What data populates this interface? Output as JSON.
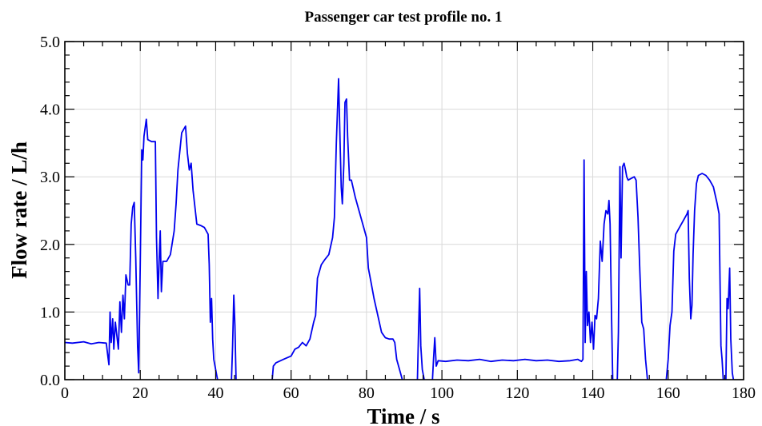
{
  "chart_data": {
    "type": "line",
    "title": "Passenger car test profile no. 1",
    "xlabel": "Time / s",
    "ylabel": "Flow rate / L/h",
    "xlim": [
      0,
      180
    ],
    "ylim": [
      0,
      5
    ],
    "xticks": [
      "0",
      "20",
      "40",
      "60",
      "80",
      "100",
      "120",
      "140",
      "160",
      "180"
    ],
    "yticks": [
      "0.0",
      "1.0",
      "2.0",
      "3.0",
      "4.0",
      "5.0"
    ],
    "grid": true,
    "series": [
      {
        "color": "#0000ee",
        "segments": [
          [
            [
              0,
              0.55
            ],
            [
              2,
              0.54
            ],
            [
              5,
              0.56
            ],
            [
              7,
              0.53
            ],
            [
              9,
              0.55
            ],
            [
              11,
              0.54
            ],
            [
              11.4,
              0.35
            ],
            [
              11.7,
              0.22
            ],
            [
              12,
              1.0
            ],
            [
              12.3,
              0.55
            ],
            [
              12.7,
              0.9
            ],
            [
              13,
              0.45
            ],
            [
              13.4,
              0.85
            ],
            [
              13.8,
              0.65
            ],
            [
              14.2,
              0.45
            ],
            [
              14.6,
              1.15
            ],
            [
              15,
              0.7
            ],
            [
              15.4,
              1.25
            ],
            [
              15.8,
              0.9
            ],
            [
              16.2,
              1.55
            ],
            [
              16.8,
              1.4
            ],
            [
              17.2,
              1.4
            ],
            [
              17.6,
              2.3
            ],
            [
              18,
              2.55
            ],
            [
              18.4,
              2.62
            ],
            [
              18.8,
              1.8
            ],
            [
              19.3,
              0.5
            ],
            [
              19.6,
              0.1
            ],
            [
              20,
              1.7
            ],
            [
              20.4,
              3.4
            ],
            [
              20.7,
              3.25
            ],
            [
              21,
              3.6
            ],
            [
              21.6,
              3.85
            ],
            [
              22,
              3.55
            ],
            [
              23,
              3.52
            ],
            [
              24,
              3.52
            ],
            [
              24.3,
              2.1
            ],
            [
              24.7,
              1.2
            ],
            [
              25,
              1.75
            ],
            [
              25.3,
              2.2
            ],
            [
              25.6,
              1.3
            ],
            [
              26,
              1.75
            ],
            [
              27,
              1.75
            ],
            [
              28,
              1.85
            ],
            [
              29,
              2.2
            ],
            [
              29.5,
              2.6
            ],
            [
              30,
              3.1
            ],
            [
              31,
              3.65
            ],
            [
              32,
              3.75
            ],
            [
              32.5,
              3.35
            ],
            [
              33,
              3.1
            ],
            [
              33.5,
              3.2
            ],
            [
              34,
              2.8
            ],
            [
              35,
              2.3
            ],
            [
              36,
              2.28
            ],
            [
              37,
              2.25
            ],
            [
              38,
              2.15
            ],
            [
              38.3,
              1.7
            ],
            [
              38.6,
              0.85
            ],
            [
              38.9,
              1.2
            ],
            [
              39.2,
              0.6
            ],
            [
              39.5,
              0.3
            ],
            [
              40,
              0.15
            ],
            [
              40.5,
              0.0
            ]
          ],
          [
            [
              44.2,
              0.0
            ],
            [
              44.5,
              0.5
            ],
            [
              44.8,
              1.25
            ],
            [
              45.1,
              0.8
            ],
            [
              45.4,
              0.0
            ]
          ],
          [
            [
              55,
              0.0
            ],
            [
              55.3,
              0.2
            ],
            [
              56,
              0.25
            ],
            [
              58,
              0.3
            ],
            [
              60,
              0.35
            ],
            [
              61,
              0.45
            ],
            [
              62,
              0.48
            ],
            [
              63,
              0.55
            ],
            [
              64,
              0.5
            ],
            [
              65,
              0.6
            ],
            [
              66,
              0.85
            ],
            [
              66.5,
              0.95
            ],
            [
              67,
              1.5
            ],
            [
              68,
              1.7
            ],
            [
              69,
              1.78
            ],
            [
              70,
              1.85
            ],
            [
              71,
              2.1
            ],
            [
              71.5,
              2.4
            ],
            [
              72,
              3.5
            ],
            [
              72.6,
              4.45
            ],
            [
              73,
              3.5
            ],
            [
              73.3,
              2.85
            ],
            [
              73.6,
              2.6
            ],
            [
              74,
              3.2
            ],
            [
              74.3,
              4.1
            ],
            [
              74.7,
              4.15
            ],
            [
              75,
              3.6
            ],
            [
              75.5,
              2.95
            ],
            [
              76,
              2.95
            ],
            [
              77,
              2.7
            ],
            [
              78,
              2.5
            ],
            [
              79,
              2.3
            ],
            [
              80,
              2.1
            ],
            [
              80.5,
              1.65
            ],
            [
              81,
              1.5
            ],
            [
              82,
              1.2
            ],
            [
              83,
              0.95
            ],
            [
              84,
              0.7
            ],
            [
              85,
              0.62
            ],
            [
              86,
              0.6
            ],
            [
              87,
              0.6
            ],
            [
              87.5,
              0.55
            ],
            [
              88,
              0.3
            ],
            [
              89,
              0.1
            ],
            [
              89.5,
              0.0
            ]
          ],
          [
            [
              93.5,
              0.0
            ],
            [
              93.8,
              0.7
            ],
            [
              94.1,
              1.35
            ],
            [
              94.4,
              0.5
            ],
            [
              94.8,
              0.15
            ],
            [
              95.3,
              0.0
            ]
          ],
          [
            [
              97.5,
              0.0
            ],
            [
              97.8,
              0.32
            ],
            [
              98.1,
              0.62
            ],
            [
              98.5,
              0.2
            ],
            [
              99,
              0.28
            ],
            [
              101,
              0.27
            ],
            [
              104,
              0.29
            ],
            [
              107,
              0.28
            ],
            [
              110,
              0.3
            ],
            [
              113,
              0.27
            ],
            [
              116,
              0.29
            ],
            [
              119,
              0.28
            ],
            [
              122,
              0.3
            ],
            [
              125,
              0.28
            ],
            [
              128,
              0.29
            ],
            [
              131,
              0.27
            ],
            [
              134,
              0.28
            ],
            [
              136,
              0.3
            ],
            [
              137,
              0.27
            ],
            [
              137.4,
              0.3
            ],
            [
              137.7,
              3.25
            ],
            [
              138,
              0.55
            ],
            [
              138.3,
              1.6
            ],
            [
              138.6,
              0.8
            ],
            [
              139,
              1.0
            ],
            [
              139.4,
              0.55
            ],
            [
              139.8,
              0.85
            ],
            [
              140.2,
              0.45
            ],
            [
              140.6,
              0.95
            ],
            [
              141,
              0.9
            ],
            [
              141.5,
              1.2
            ],
            [
              142,
              2.05
            ],
            [
              142.5,
              1.75
            ],
            [
              143,
              2.3
            ],
            [
              143.5,
              2.5
            ],
            [
              144,
              2.45
            ],
            [
              144.3,
              2.65
            ],
            [
              144.6,
              2.3
            ],
            [
              145,
              0.9
            ],
            [
              145.3,
              0.0
            ]
          ],
          [
            [
              146.5,
              0.0
            ],
            [
              146.8,
              0.7
            ],
            [
              147.2,
              3.15
            ],
            [
              147.5,
              1.8
            ],
            [
              147.9,
              3.15
            ],
            [
              148.3,
              3.2
            ],
            [
              148.7,
              3.1
            ],
            [
              149,
              3.0
            ],
            [
              149.4,
              2.95
            ],
            [
              150,
              2.97
            ],
            [
              151,
              3.0
            ],
            [
              151.5,
              2.95
            ],
            [
              152,
              2.4
            ],
            [
              152.5,
              1.6
            ],
            [
              153,
              0.85
            ],
            [
              153.5,
              0.75
            ],
            [
              154,
              0.3
            ],
            [
              154.5,
              0.0
            ]
          ],
          [
            [
              159.5,
              0.0
            ],
            [
              160,
              0.3
            ],
            [
              160.5,
              0.8
            ],
            [
              161,
              1.0
            ],
            [
              161.5,
              1.9
            ],
            [
              162,
              2.15
            ],
            [
              163,
              2.25
            ],
            [
              164,
              2.35
            ],
            [
              165,
              2.45
            ],
            [
              165.3,
              2.5
            ],
            [
              165.6,
              1.5
            ],
            [
              166,
              0.9
            ],
            [
              166.3,
              1.1
            ],
            [
              166.6,
              1.85
            ],
            [
              167,
              2.5
            ],
            [
              167.5,
              2.9
            ],
            [
              168,
              3.02
            ],
            [
              169,
              3.05
            ],
            [
              170,
              3.02
            ],
            [
              171,
              2.95
            ],
            [
              172,
              2.85
            ],
            [
              173,
              2.6
            ],
            [
              173.5,
              2.45
            ],
            [
              174,
              0.5
            ],
            [
              174.3,
              0.3
            ],
            [
              174.6,
              0.0
            ]
          ],
          [
            [
              175.3,
              0.0
            ],
            [
              175.6,
              1.2
            ],
            [
              175.9,
              1.05
            ],
            [
              176.3,
              1.65
            ],
            [
              176.6,
              0.6
            ],
            [
              177,
              0.1
            ],
            [
              177.3,
              0.0
            ]
          ]
        ]
      }
    ]
  }
}
